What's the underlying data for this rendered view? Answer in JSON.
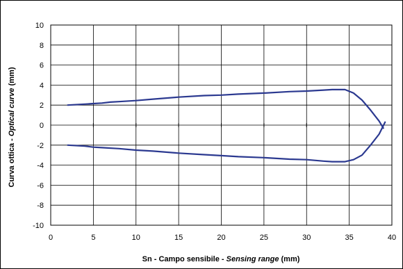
{
  "chart_data": {
    "type": "line",
    "xlabel": {
      "plain": "Sn - Campo sensibile - ",
      "italic": "Sensing range",
      "unit": " (mm)"
    },
    "ylabel": {
      "plain": "Curva ottica - ",
      "italic": "Optical curve",
      "unit": "(mm)"
    },
    "xlim": [
      0,
      40
    ],
    "ylim": [
      -10,
      10
    ],
    "xticks": [
      0,
      5,
      10,
      15,
      20,
      25,
      30,
      35,
      40
    ],
    "yticks": [
      -10,
      -8,
      -6,
      -4,
      -2,
      0,
      2,
      4,
      6,
      8,
      10
    ],
    "grid": true,
    "line_color": "#2b3990",
    "series": [
      {
        "values": [
          [
            2,
            2.0
          ],
          [
            4,
            2.1
          ],
          [
            5,
            2.15
          ],
          [
            6,
            2.2
          ],
          [
            7,
            2.3
          ],
          [
            8,
            2.35
          ],
          [
            10,
            2.45
          ],
          [
            12,
            2.6
          ],
          [
            15,
            2.8
          ],
          [
            18,
            2.95
          ],
          [
            20,
            3.0
          ],
          [
            22,
            3.1
          ],
          [
            25,
            3.2
          ],
          [
            28,
            3.35
          ],
          [
            30,
            3.4
          ],
          [
            32,
            3.5
          ],
          [
            33,
            3.55
          ],
          [
            34.5,
            3.55
          ],
          [
            35.5,
            3.2
          ],
          [
            36.5,
            2.5
          ],
          [
            37.5,
            1.5
          ],
          [
            38.5,
            0.4
          ],
          [
            39,
            -0.3
          ]
        ]
      },
      {
        "values": [
          [
            2,
            -2.0
          ],
          [
            4,
            -2.1
          ],
          [
            5,
            -2.2
          ],
          [
            6,
            -2.25
          ],
          [
            8,
            -2.35
          ],
          [
            10,
            -2.5
          ],
          [
            12,
            -2.6
          ],
          [
            15,
            -2.8
          ],
          [
            18,
            -2.95
          ],
          [
            20,
            -3.05
          ],
          [
            22,
            -3.15
          ],
          [
            25,
            -3.25
          ],
          [
            28,
            -3.4
          ],
          [
            30,
            -3.45
          ],
          [
            32,
            -3.6
          ],
          [
            33,
            -3.65
          ],
          [
            34.5,
            -3.65
          ],
          [
            35.5,
            -3.45
          ],
          [
            36.5,
            -3.0
          ],
          [
            37.5,
            -2.0
          ],
          [
            38.5,
            -0.9
          ],
          [
            39.2,
            0.3
          ]
        ]
      }
    ]
  }
}
